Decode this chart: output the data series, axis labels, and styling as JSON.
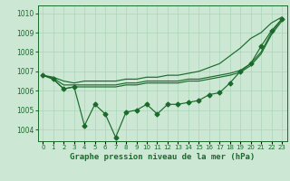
{
  "title": "Graphe pression niveau de la mer (hPa)",
  "background_color": "#cce8d4",
  "grid_color": "#aad4b8",
  "line_color": "#1a6b2a",
  "x": [
    0,
    1,
    2,
    3,
    4,
    5,
    6,
    7,
    8,
    9,
    10,
    11,
    12,
    13,
    14,
    15,
    16,
    17,
    18,
    19,
    20,
    21,
    22,
    23
  ],
  "series_jagged": [
    1006.8,
    1006.6,
    1006.1,
    1006.2,
    1004.2,
    1005.3,
    1004.8,
    1003.6,
    1004.9,
    1005.0,
    1005.3,
    1004.8,
    1005.3,
    1005.3,
    1005.4,
    1005.5,
    1005.8,
    1005.9,
    1006.4,
    1007.0,
    1007.4,
    1008.3,
    1009.1,
    1009.7
  ],
  "series_upper": [
    1006.8,
    1006.7,
    1006.5,
    1006.4,
    1006.5,
    1006.5,
    1006.5,
    1006.5,
    1006.6,
    1006.6,
    1006.7,
    1006.7,
    1006.8,
    1006.8,
    1006.9,
    1007.0,
    1007.2,
    1007.4,
    1007.8,
    1008.2,
    1008.7,
    1009.0,
    1009.5,
    1009.8
  ],
  "series_mid_upper": [
    1006.8,
    1006.65,
    1006.3,
    1006.3,
    1006.3,
    1006.3,
    1006.3,
    1006.3,
    1006.4,
    1006.4,
    1006.5,
    1006.5,
    1006.5,
    1006.5,
    1006.6,
    1006.6,
    1006.7,
    1006.8,
    1006.9,
    1007.05,
    1007.4,
    1008.0,
    1009.0,
    1009.7
  ],
  "series_mid_lower": [
    1006.8,
    1006.6,
    1006.1,
    1006.2,
    1006.2,
    1006.2,
    1006.2,
    1006.2,
    1006.3,
    1006.3,
    1006.4,
    1006.4,
    1006.4,
    1006.4,
    1006.5,
    1006.5,
    1006.6,
    1006.7,
    1006.8,
    1006.95,
    1007.3,
    1007.9,
    1008.9,
    1009.6
  ],
  "ylim": [
    1003.4,
    1010.4
  ],
  "yticks": [
    1004,
    1005,
    1006,
    1007,
    1008,
    1009,
    1010
  ],
  "title_fontsize": 6.5,
  "tick_fontsize": 5.5,
  "marker_size": 2.5,
  "line_width": 0.85
}
